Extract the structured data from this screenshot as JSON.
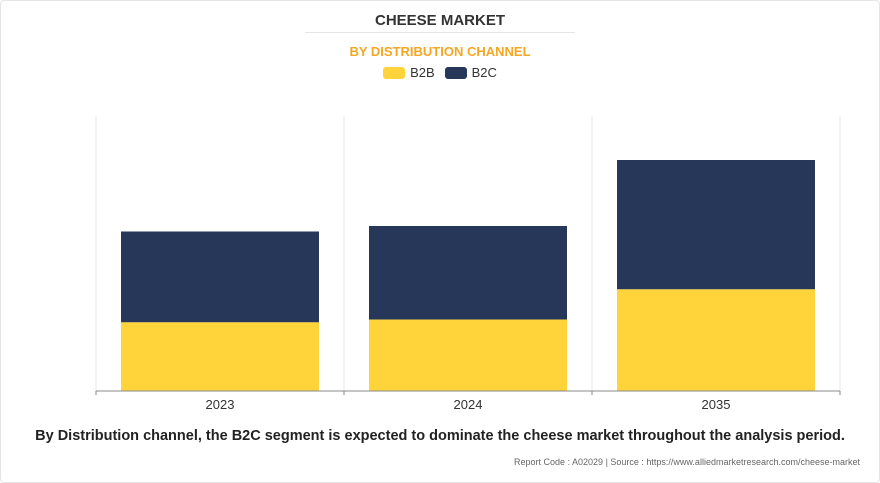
{
  "header": {
    "title": "CHEESE MARKET",
    "subtitle": "BY DISTRIBUTION CHANNEL"
  },
  "chart_data": {
    "type": "bar",
    "stacked": true,
    "categories": [
      "2023",
      "2024",
      "2035"
    ],
    "series": [
      {
        "name": "B2B",
        "color": "#ffd43b",
        "values": [
          2.5,
          2.6,
          3.7
        ]
      },
      {
        "name": "B2C",
        "color": "#26375a",
        "values": [
          3.3,
          3.4,
          4.7
        ]
      }
    ],
    "ylim": [
      0,
      10
    ],
    "grid": "vertical",
    "legend": "top-center"
  },
  "footer": {
    "note": "By Distribution channel, the B2C segment is expected to dominate the cheese market throughout the analysis period.",
    "source": "Report Code : A02029  |  Source : https://www.alliedmarketresearch.com/cheese-market"
  }
}
